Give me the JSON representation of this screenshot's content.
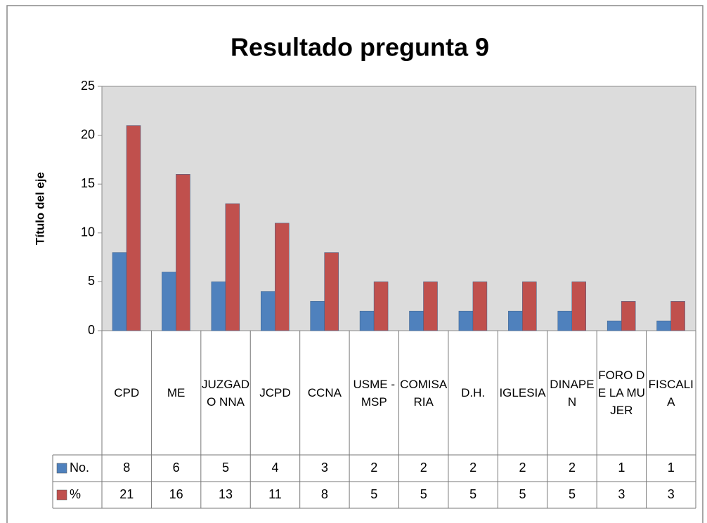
{
  "chart_data": {
    "type": "bar",
    "title": "Resultado pregunta 9",
    "y_axis_label": "Título del eje",
    "categories": [
      "CPD",
      "ME",
      "JUZGADO NNA",
      "JCPD",
      "CCNA",
      "USME - MSP",
      "COMISARIA",
      "D.H.",
      "IGLESIA",
      "DINAPEN",
      "FORO DE LA MUJER",
      "FISCALIA"
    ],
    "series": [
      {
        "name": "No.",
        "color": "#4f81bd",
        "values": [
          8,
          6,
          5,
          4,
          3,
          2,
          2,
          2,
          2,
          2,
          1,
          1
        ]
      },
      {
        "name": "%",
        "color": "#c0504d",
        "values": [
          21,
          16,
          13,
          11,
          8,
          5,
          5,
          5,
          5,
          5,
          3,
          3
        ]
      }
    ],
    "ylim": [
      0,
      25
    ],
    "yticks": [
      0,
      5,
      10,
      15,
      20,
      25
    ],
    "grid": false,
    "data_table": true
  }
}
